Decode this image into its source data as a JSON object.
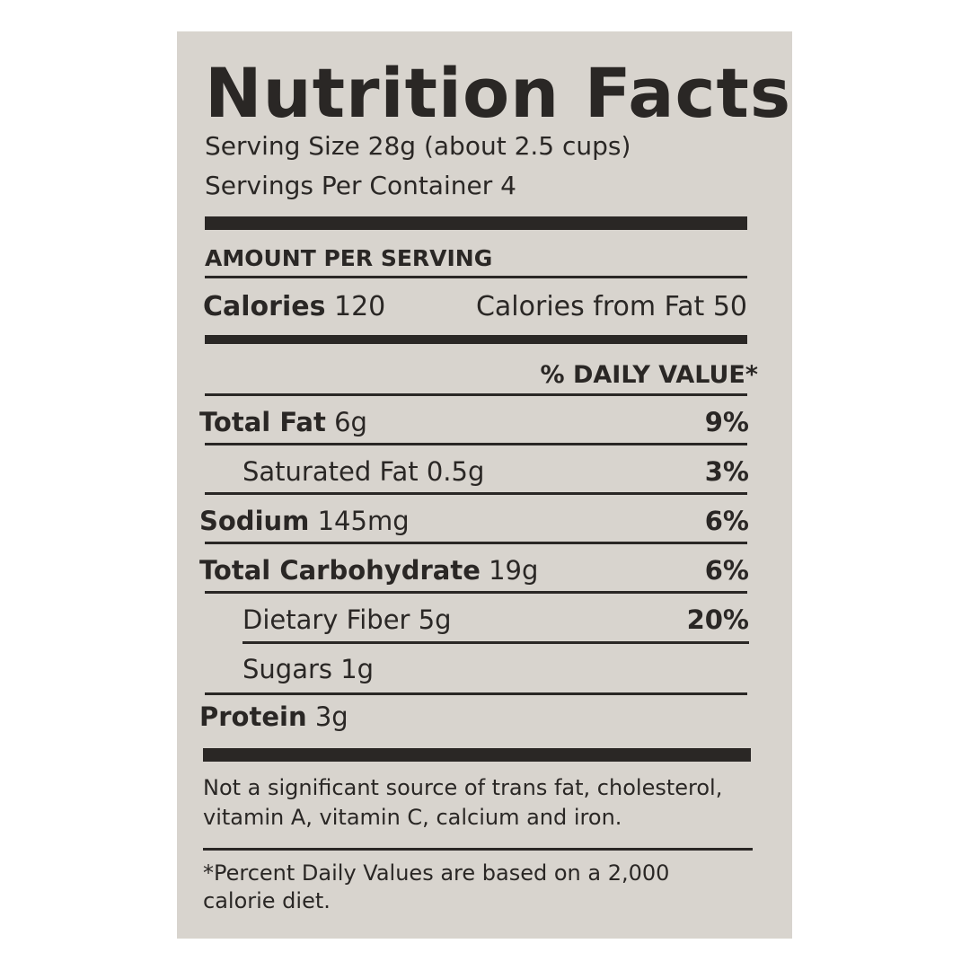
{
  "title": "Nutrition Facts",
  "serving_size": "Serving Size 28g (about 2.5 cups)",
  "servings_per_container": "Servings Per Container 4",
  "amount_per_serving": "AMOUNT PER SERVING",
  "calories": {
    "label": "Calories",
    "value": "120",
    "from_fat": "Calories from Fat 50"
  },
  "daily_value_header": "% DAILY VALUE*",
  "nutrients": [
    {
      "label": "Total Fat",
      "amount": "6g",
      "dv": "9%"
    },
    {
      "label": "Saturated Fat",
      "amount": "0.5g",
      "dv": "3%"
    },
    {
      "label": "Sodium",
      "amount": "145mg",
      "dv": "6%"
    },
    {
      "label": "Total Carbohydrate",
      "amount": "19g",
      "dv": "6%"
    },
    {
      "label": "Dietary Fiber",
      "amount": "5g",
      "dv": "20%"
    },
    {
      "label": "Sugars",
      "amount": "1g",
      "dv": ""
    },
    {
      "label": "Protein",
      "amount": "3g",
      "dv": ""
    }
  ],
  "footnote_1": [
    "Not a significant source of trans fat, cholesterol,",
    "vitamin A, vitamin C, calcium and iron."
  ],
  "footnote_2": [
    "*Percent Daily Values are based on a 2,000",
    "calorie diet."
  ]
}
